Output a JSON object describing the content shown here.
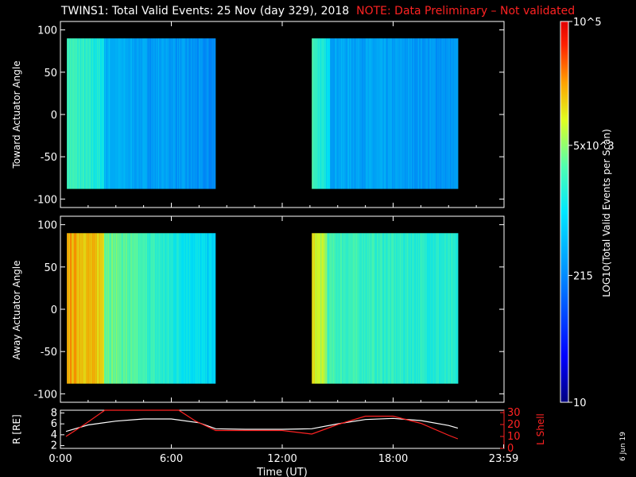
{
  "header": {
    "title": "TWINS1: Total Valid Events: 25 Nov (day 329), 2018",
    "note": "NOTE: Data Preliminary – Not validated"
  },
  "side_date": "6 Jun 19",
  "colors": {
    "note": "#ff2222",
    "r_line": "#ffffff",
    "l_line": "#ff2222"
  },
  "chart_data": [
    {
      "type": "heatmap",
      "ylabel": "Toward Actuator Angle",
      "ylim": [
        -110,
        110
      ],
      "yticks": [
        "100",
        "50",
        "0",
        "-50",
        "-100"
      ],
      "x_range_hours": [
        0,
        24
      ],
      "segments": [
        {
          "start_hour": 0.35,
          "end_hour": 8.4,
          "y_range": [
            -88,
            90
          ]
        },
        {
          "start_hour": 13.6,
          "end_hour": 21.5,
          "y_range": [
            -88,
            90
          ]
        }
      ]
    },
    {
      "type": "heatmap",
      "ylabel": "Away Actuator Angle",
      "ylim": [
        -110,
        110
      ],
      "yticks": [
        "100",
        "50",
        "0",
        "-50",
        "-100"
      ],
      "x_range_hours": [
        0,
        24
      ],
      "segments": [
        {
          "start_hour": 0.35,
          "end_hour": 8.4,
          "y_range": [
            -88,
            90
          ]
        },
        {
          "start_hour": 13.6,
          "end_hour": 21.5,
          "y_range": [
            -88,
            90
          ]
        }
      ]
    },
    {
      "type": "line",
      "xlabel": "Time (UT)",
      "xticks": [
        "0:00",
        "6:00",
        "12:00",
        "18:00",
        "23:59"
      ],
      "left_axis": {
        "label": "R [RE]",
        "ylim": [
          1.5,
          8.5
        ],
        "ticks": [
          "8",
          "6",
          "4",
          "2"
        ]
      },
      "right_axis": {
        "label": "L Shell",
        "ylim": [
          0,
          32
        ],
        "ticks": [
          "30",
          "20",
          "10",
          "0"
        ]
      },
      "series": [
        {
          "axis": "left",
          "x": [
            0.3,
            1.5,
            3,
            4.5,
            6,
            7.5,
            8.4,
            10,
            12,
            13.6,
            15,
            16.5,
            18,
            19.5,
            21,
            21.5
          ],
          "values": [
            4.6,
            5.8,
            6.5,
            6.9,
            6.9,
            6.2,
            5.1,
            5.0,
            5.0,
            5.1,
            6.0,
            6.8,
            7.0,
            6.6,
            5.7,
            5.2
          ]
        },
        {
          "axis": "right",
          "x": [
            0.3,
            1.3,
            2.4,
            6.4,
            7.3,
            8.4,
            10,
            12,
            13.6,
            15,
            16.5,
            18,
            19.5,
            21,
            21.5
          ],
          "values": [
            10,
            20,
            32,
            32,
            23,
            15,
            15,
            15,
            12,
            20,
            27,
            27,
            21,
            11,
            8
          ]
        }
      ]
    },
    {
      "type": "heatmap",
      "ylabel": "LOG10(Total Valid Events per Scan)",
      "scale": "log",
      "ticks": [
        "10^5",
        "5x10^3",
        "215",
        "10"
      ],
      "zlim": [
        10,
        100000
      ]
    }
  ]
}
